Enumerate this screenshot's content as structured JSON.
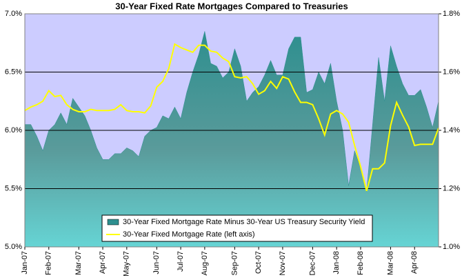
{
  "chart_data": {
    "type": "combo",
    "title": "30-Year Fixed Rate Mortgages Compared to Treasuries",
    "categories": [
      "Jan-07",
      null,
      null,
      null,
      "Feb-07",
      null,
      null,
      null,
      null,
      "Mar-07",
      null,
      null,
      null,
      "Apr-07",
      null,
      null,
      null,
      "May-07",
      null,
      null,
      null,
      null,
      "Jun-07",
      null,
      null,
      null,
      "Jul-07",
      null,
      null,
      null,
      "Aug-07",
      null,
      null,
      null,
      null,
      "Sep-07",
      null,
      null,
      null,
      "Oct-07",
      null,
      null,
      null,
      "Nov-07",
      null,
      null,
      null,
      null,
      "Dec-07",
      null,
      null,
      null,
      "Jan-08",
      null,
      null,
      null,
      "Feb-08",
      null,
      null,
      null,
      null,
      "Mar-08",
      null,
      null,
      null,
      "Apr-08",
      null,
      null,
      null,
      null
    ],
    "series": [
      {
        "name": "30-Year Fixed Mortgage Rate Minus 30-Year US Treasury Security Yield",
        "type": "area",
        "axis": "y2",
        "color": "#2e8f8f",
        "values": [
          1.42,
          1.42,
          1.38,
          1.33,
          1.4,
          1.42,
          1.46,
          1.42,
          1.51,
          1.48,
          1.45,
          1.4,
          1.34,
          1.3,
          1.3,
          1.32,
          1.32,
          1.34,
          1.33,
          1.31,
          1.38,
          1.4,
          1.41,
          1.45,
          1.44,
          1.48,
          1.44,
          1.53,
          1.6,
          1.66,
          1.74,
          1.63,
          1.62,
          1.58,
          1.6,
          1.68,
          1.62,
          1.5,
          1.53,
          1.55,
          1.59,
          1.64,
          1.59,
          1.59,
          1.68,
          1.72,
          1.72,
          1.53,
          1.54,
          1.6,
          1.56,
          1.63,
          1.5,
          1.4,
          1.21,
          1.33,
          1.27,
          1.19,
          1.42,
          1.65,
          1.5,
          1.69,
          1.62,
          1.56,
          1.52,
          1.52,
          1.54,
          1.48,
          1.41,
          1.5
        ]
      },
      {
        "name": "30-Year Fixed Mortgage Rate (left axis)",
        "type": "line",
        "color": "#ffff00",
        "values": [
          6.17,
          6.2,
          6.22,
          6.25,
          6.34,
          6.29,
          6.3,
          6.22,
          6.18,
          6.16,
          6.16,
          6.18,
          6.17,
          6.17,
          6.17,
          6.18,
          6.22,
          6.17,
          6.16,
          6.16,
          6.15,
          6.21,
          6.37,
          6.42,
          6.53,
          6.74,
          6.71,
          6.69,
          6.67,
          6.73,
          6.73,
          6.68,
          6.67,
          6.62,
          6.59,
          6.46,
          6.45,
          6.46,
          6.4,
          6.31,
          6.34,
          6.42,
          6.36,
          6.46,
          6.44,
          6.33,
          6.24,
          6.24,
          6.22,
          6.1,
          5.96,
          6.14,
          6.17,
          6.14,
          6.07,
          5.87,
          5.69,
          5.48,
          5.67,
          5.67,
          5.72,
          6.04,
          6.24,
          6.13,
          6.03,
          5.87,
          5.88,
          5.88,
          5.88,
          6.02
        ]
      }
    ],
    "ylim": [
      5.0,
      7.0
    ],
    "yticks": [
      {
        "value": 5.0,
        "label": "5.0%"
      },
      {
        "value": 5.5,
        "label": "5.5%"
      },
      {
        "value": 6.0,
        "label": "6.0%"
      },
      {
        "value": 6.5,
        "label": "6.5%"
      },
      {
        "value": 7.0,
        "label": "7.0%"
      }
    ],
    "y2lim": [
      1.0,
      1.8
    ],
    "y2ticks": [
      {
        "value": 1.0,
        "label": "1.0%"
      },
      {
        "value": 1.2,
        "label": "1.2%"
      },
      {
        "value": 1.4,
        "label": "1.4%"
      },
      {
        "value": 1.6,
        "label": "1.6%"
      },
      {
        "value": 1.8,
        "label": "1.8%"
      }
    ],
    "grid": true,
    "background": "#ccccff"
  }
}
